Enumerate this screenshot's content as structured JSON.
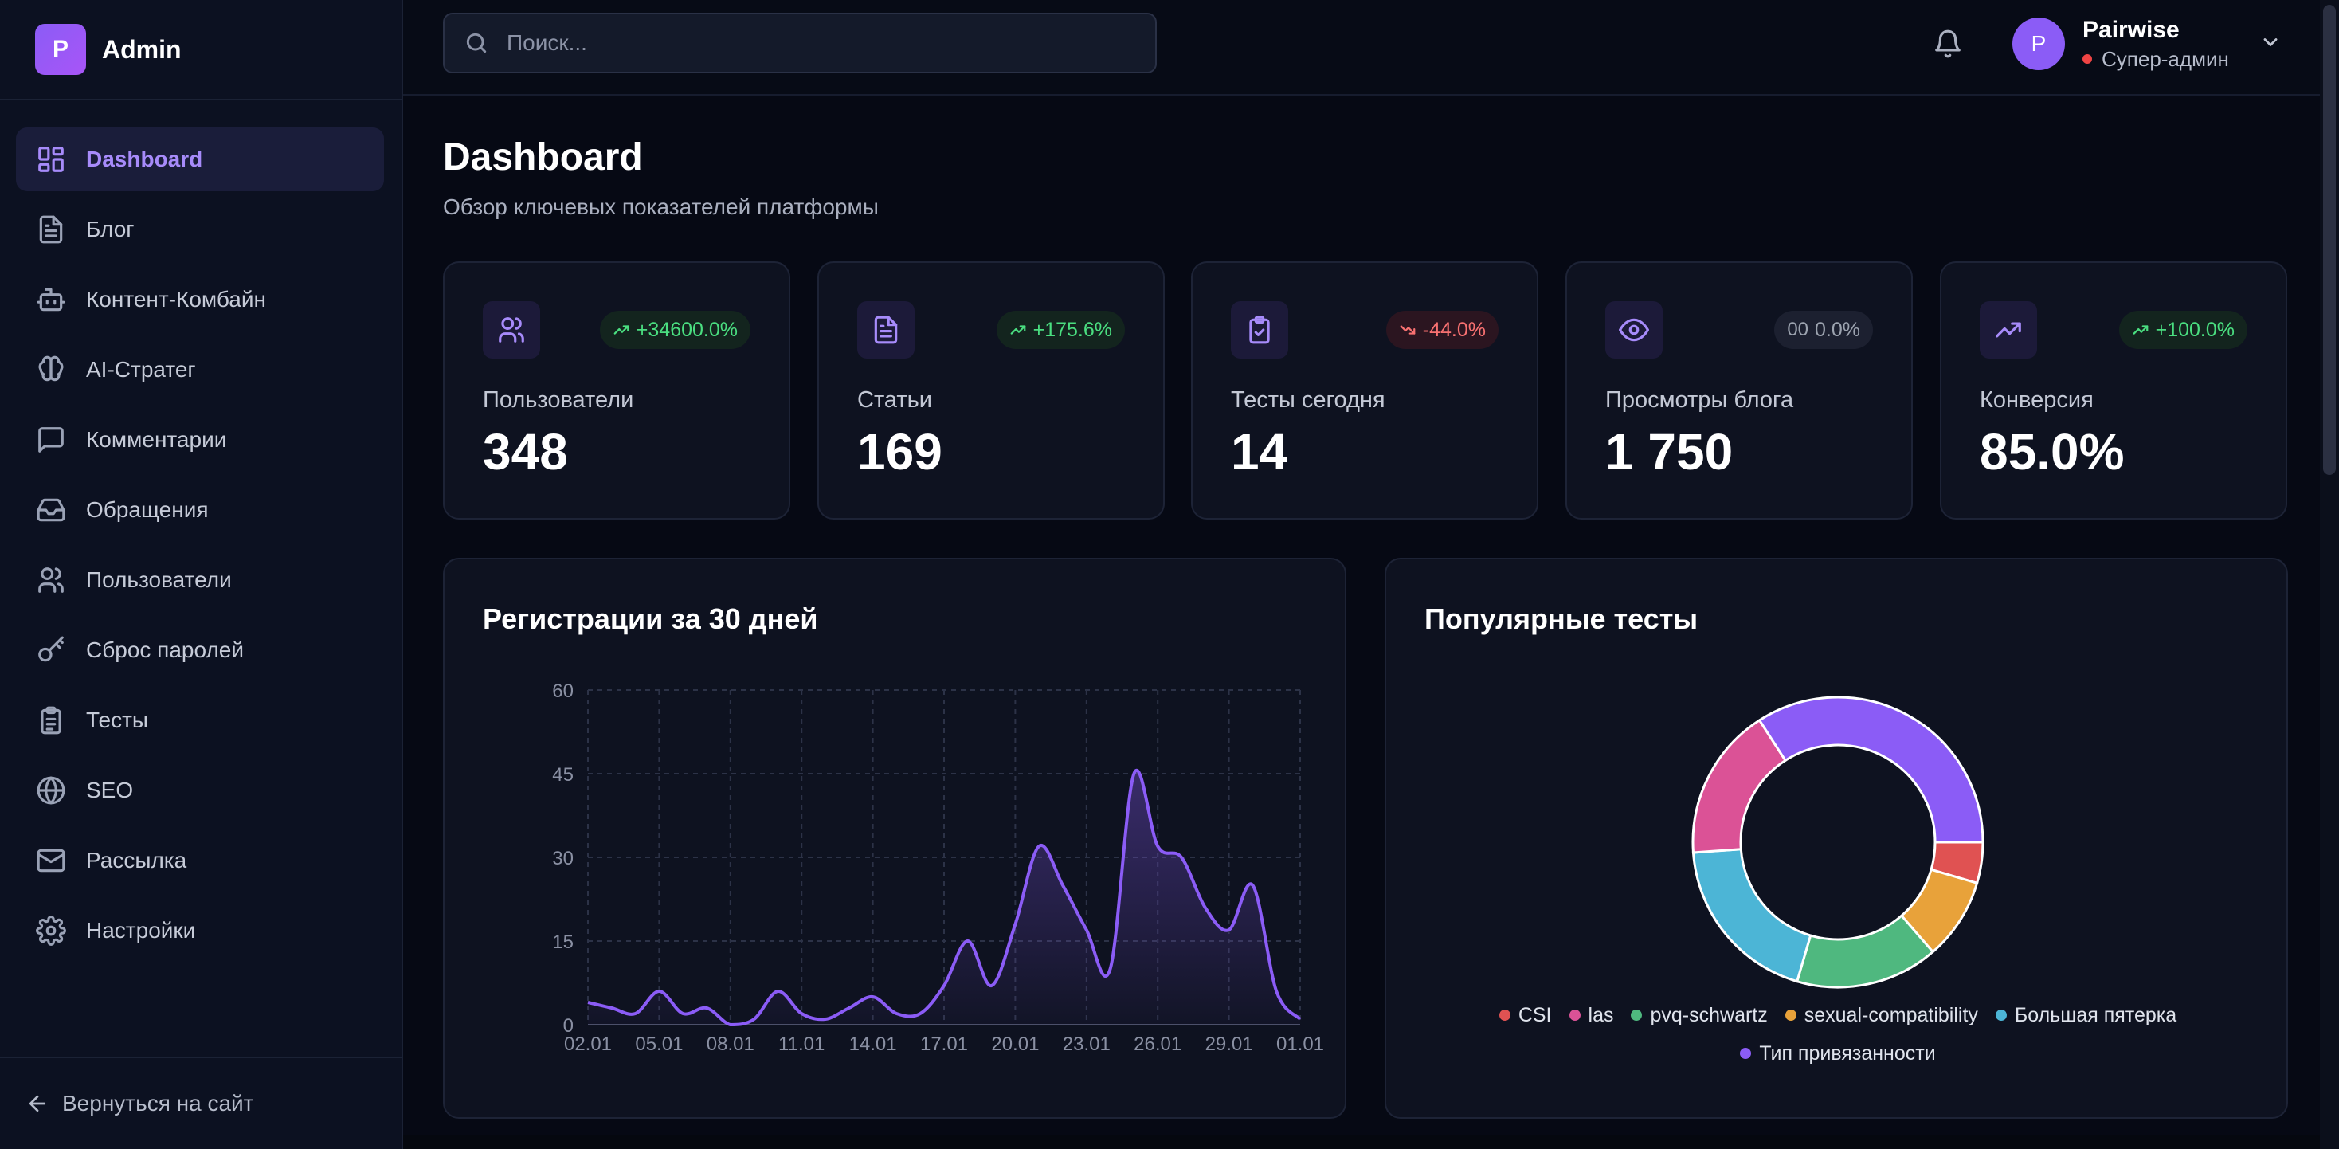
{
  "brand": {
    "logo_letter": "P",
    "name": "Admin"
  },
  "sidebar": {
    "items": [
      {
        "label": "Dashboard",
        "icon": "dashboard-grid-icon",
        "active": true
      },
      {
        "label": "Блог",
        "icon": "document-icon"
      },
      {
        "label": "Контент-Комбайн",
        "icon": "robot-icon"
      },
      {
        "label": "AI-Стратег",
        "icon": "brain-icon"
      },
      {
        "label": "Комментарии",
        "icon": "comment-icon"
      },
      {
        "label": "Обращения",
        "icon": "inbox-icon"
      },
      {
        "label": "Пользователи",
        "icon": "users-icon"
      },
      {
        "label": "Сброс паролей",
        "icon": "key-icon"
      },
      {
        "label": "Тесты",
        "icon": "clipboard-list-icon"
      },
      {
        "label": "SEO",
        "icon": "globe-icon"
      },
      {
        "label": "Рассылка",
        "icon": "mail-icon"
      },
      {
        "label": "Настройки",
        "icon": "gear-icon"
      }
    ],
    "back_label": "Вернуться на сайт"
  },
  "header": {
    "search_placeholder": "Поиск...",
    "user": {
      "avatar_letter": "P",
      "name": "Pairwise",
      "role": "Супер-админ"
    }
  },
  "page": {
    "title": "Dashboard",
    "subtitle": "Обзор ключевых показателей платформы"
  },
  "stats": [
    {
      "label": "Пользователи",
      "value": "348",
      "change": "+34600.0%",
      "trend": "up",
      "icon": "users-icon"
    },
    {
      "label": "Статьи",
      "value": "169",
      "change": "+175.6%",
      "trend": "up",
      "icon": "document-icon"
    },
    {
      "label": "Тесты сегодня",
      "value": "14",
      "change": "-44.0%",
      "trend": "down",
      "icon": "clipboard-check-icon"
    },
    {
      "label": "Просмотры блога",
      "value": "1 750",
      "change": "0.0%",
      "change_prefix": "00",
      "trend": "flat",
      "icon": "eye-icon"
    },
    {
      "label": "Конверсия",
      "value": "85.0%",
      "change": "+100.0%",
      "trend": "up",
      "icon": "trending-up-icon"
    }
  ],
  "registrations": {
    "title": "Регистрации за 30 дней"
  },
  "popular": {
    "title": "Популярные тесты"
  },
  "colors": {
    "accent": "#8b5cf6",
    "up": "#4ade80",
    "down": "#f87171"
  },
  "chart_data": [
    {
      "type": "area",
      "title": "Регистрации за 30 дней",
      "xlabel": "",
      "ylabel": "",
      "x": [
        "02.01",
        "03.01",
        "04.01",
        "05.01",
        "06.01",
        "07.01",
        "08.01",
        "09.01",
        "10.01",
        "11.01",
        "12.01",
        "13.01",
        "14.01",
        "15.01",
        "16.01",
        "17.01",
        "18.01",
        "19.01",
        "20.01",
        "21.01",
        "22.01",
        "23.01",
        "24.01",
        "25.01",
        "26.01",
        "27.01",
        "28.01",
        "29.01",
        "30.01",
        "31.01",
        "01.01"
      ],
      "x_ticks": [
        "02.01",
        "05.01",
        "08.01",
        "11.01",
        "14.01",
        "17.01",
        "20.01",
        "23.01",
        "26.01",
        "29.01",
        "01.01"
      ],
      "y_ticks": [
        0,
        15,
        30,
        45,
        60
      ],
      "ylim": [
        0,
        60
      ],
      "series": [
        {
          "values": [
            4,
            3,
            2,
            6,
            2,
            3,
            0,
            1,
            6,
            2,
            1,
            3,
            5,
            2,
            2,
            7,
            15,
            7,
            18,
            32,
            25,
            17,
            10,
            45,
            32,
            30,
            21,
            17,
            25,
            6,
            1
          ],
          "color": "#8b5cf6"
        }
      ],
      "grid": true
    },
    {
      "type": "pie",
      "title": "Популярные тесты",
      "donut": true,
      "categories": [
        "CSI",
        "las",
        "pvq-schwartz",
        "sexual-compatibility",
        "Большая пятерка",
        "Тип привязанности"
      ],
      "values": [
        4,
        15,
        14,
        8,
        17,
        30
      ],
      "colors": [
        "#e05252",
        "#db5296",
        "#4fb87f",
        "#e8a23a",
        "#4cb5d6",
        "#8b5cf6"
      ],
      "legend": "bottom"
    }
  ]
}
